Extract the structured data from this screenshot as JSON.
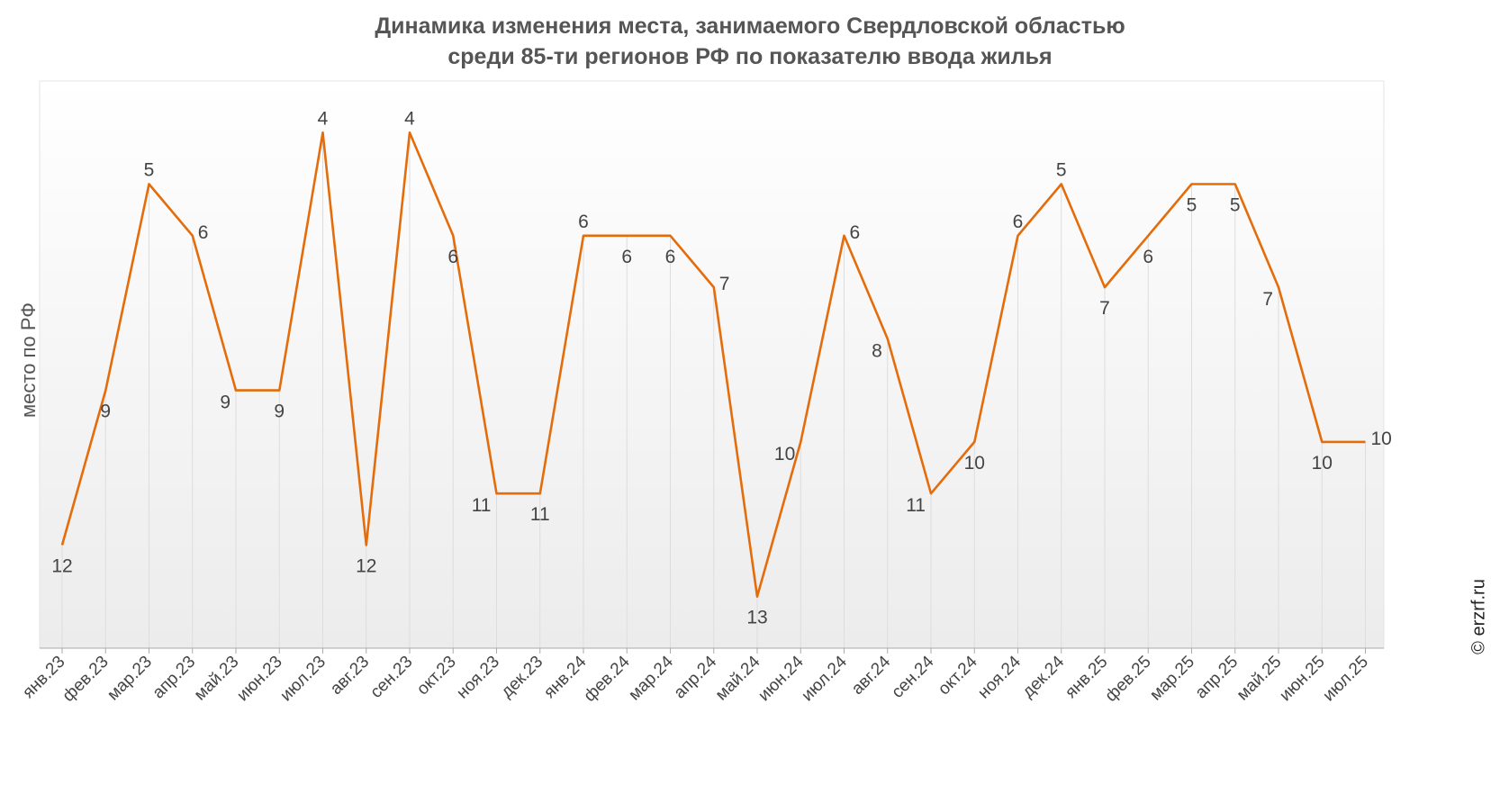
{
  "title_line1": "Динамика изменения места, занимаемого Свердловской областью",
  "title_line2": "среди 85-ти регионов РФ по показателю ввода жилья",
  "watermark": "© erzrf.ru",
  "chart_data": {
    "type": "line",
    "ylabel": "место по РФ",
    "y_inverted": true,
    "ylim": [
      3,
      14
    ],
    "grid": "vertical",
    "colors": {
      "line": "#E46C0A",
      "label": "#444444",
      "grid": "#dddddd"
    },
    "categories": [
      "янв.23",
      "фев.23",
      "мар.23",
      "апр.23",
      "май.23",
      "июн.23",
      "июл.23",
      "авг.23",
      "сен.23",
      "окт.23",
      "ноя.23",
      "дек.23",
      "янв.24",
      "фев.24",
      "мар.24",
      "апр.24",
      "май.24",
      "июн.24",
      "июл.24",
      "авг.24",
      "сен.24",
      "окт.24",
      "ноя.24",
      "дек.24",
      "янв.25",
      "фев.25",
      "мар.25",
      "апр.25",
      "май.25",
      "июн.25",
      "июл.25"
    ],
    "values": [
      12,
      9,
      5,
      6,
      9,
      9,
      4,
      12,
      4,
      6,
      11,
      11,
      6,
      6,
      6,
      7,
      13,
      10,
      6,
      8,
      11,
      10,
      6,
      5,
      7,
      6,
      5,
      5,
      7,
      10,
      10
    ],
    "labels": [
      "12",
      "9",
      "5",
      "6",
      "9",
      "9",
      "4",
      "12",
      "4",
      "6",
      "11",
      "11",
      "6",
      "6",
      "6",
      "7",
      "13",
      "10",
      "6",
      "8",
      "11",
      "10",
      "6",
      "5",
      "7",
      "6",
      "5",
      "5",
      "7",
      "10",
      "10"
    ],
    "label_positions": [
      "below",
      "below",
      "above",
      "right",
      "left",
      "below",
      "above",
      "below",
      "above",
      "below",
      "left",
      "below",
      "above",
      "below",
      "below",
      "right",
      "below",
      "left",
      "right",
      "left",
      "left",
      "below",
      "above",
      "above",
      "below",
      "below",
      "below",
      "below",
      "left",
      "below",
      "right"
    ]
  }
}
